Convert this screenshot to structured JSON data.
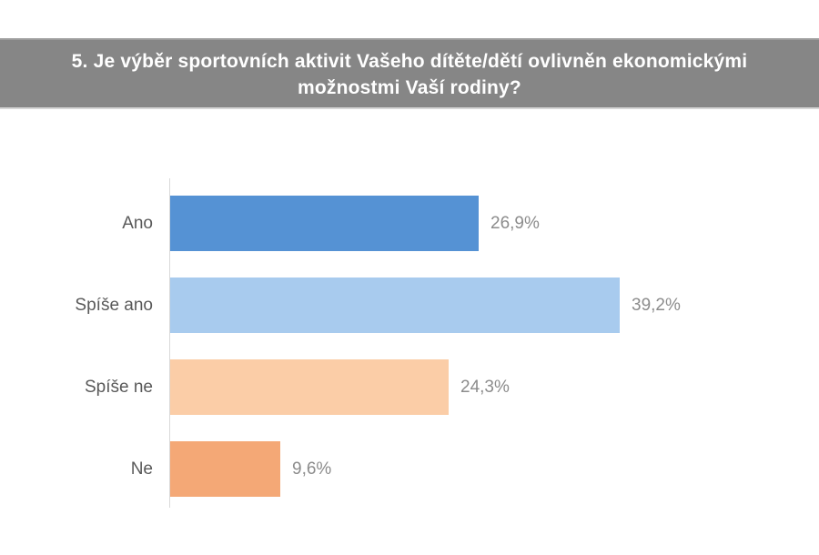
{
  "header": {
    "title_lines": [
      "5. Je výběr sportovních aktivit Vašeho dítěte/dětí ovlivněn ekonomickými",
      "možnostmi Vaší rodiny?"
    ],
    "bg_color": "#868686",
    "text_color": "#ffffff"
  },
  "chart_data": {
    "type": "bar",
    "orientation": "horizontal",
    "title": "5. Je výběr sportovních aktivit Vašeho dítěte/dětí ovlivněn ekonomickými možnostmi Vaší rodiny?",
    "categories": [
      "Ano",
      "Spíše ano",
      "Spíše ne",
      "Ne"
    ],
    "values": [
      26.9,
      39.2,
      24.3,
      9.6
    ],
    "value_labels": [
      "26,9%",
      "39,2%",
      "24,3%",
      "9,6%"
    ],
    "bar_colors": [
      "#5592d4",
      "#a8cbee",
      "#fbcda7",
      "#f4a876"
    ],
    "unit": "%",
    "xlim": [
      0,
      45
    ],
    "grid": false,
    "legend": false,
    "xlabel": "",
    "ylabel": "",
    "category_label_color": "#595959",
    "value_label_color": "#8c8c8c",
    "axis_line_color": "#d9d9d9"
  }
}
